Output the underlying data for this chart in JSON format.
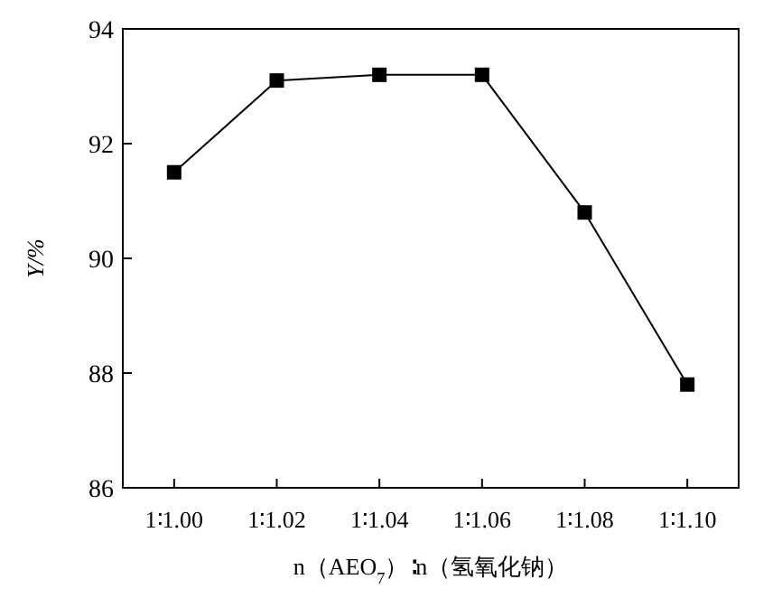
{
  "chart_data": {
    "type": "line",
    "xlabel": "n（AEO$_{7}$）∶n（氢氧化钠）",
    "ylabel": "Y/%",
    "categories": [
      "1∶1.00",
      "1∶1.02",
      "1∶1.04",
      "1∶1.06",
      "1∶1.08",
      "1∶1.10"
    ],
    "series": [
      {
        "color": "#000000",
        "values": [
          91.5,
          93.1,
          93.2,
          93.2,
          90.8,
          87.8
        ]
      }
    ],
    "ylim": [
      86,
      94
    ],
    "yticks": [
      86,
      88,
      90,
      92,
      94
    ],
    "marker": "square",
    "line_style": "solid"
  }
}
